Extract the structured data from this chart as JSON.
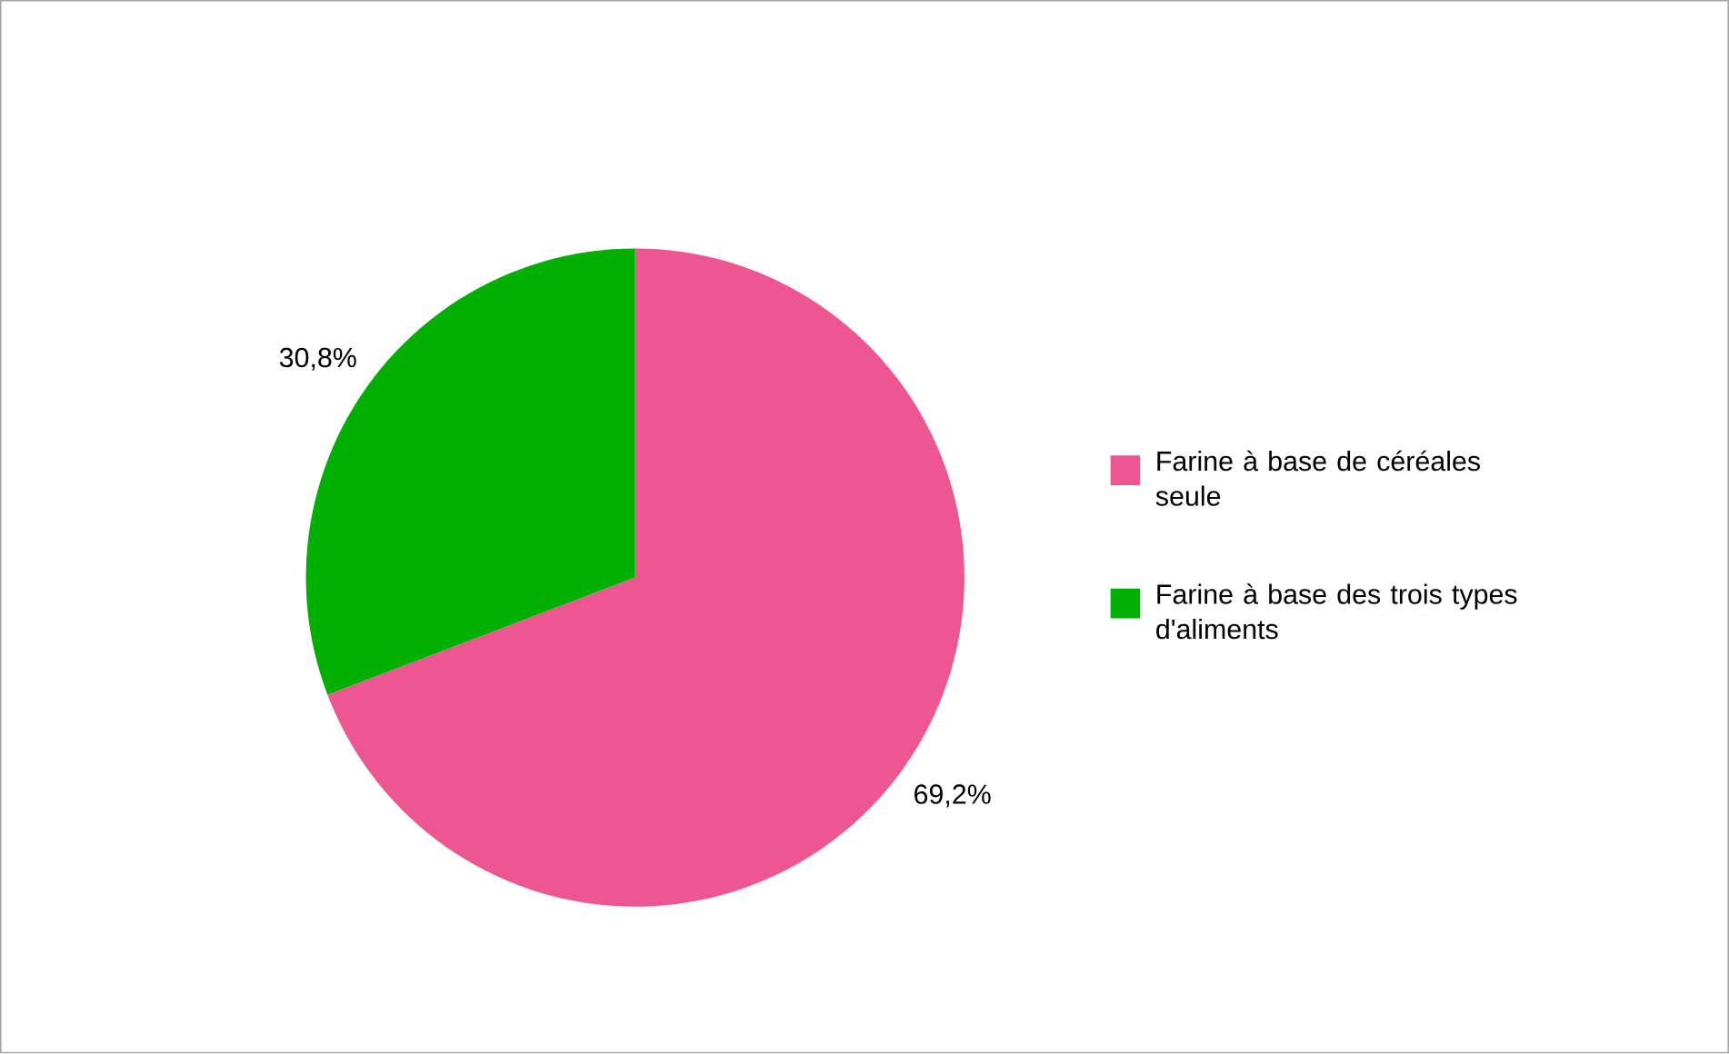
{
  "chart_data": {
    "type": "pie",
    "categories": [
      "Farine à base de céréales seule",
      "Farine à base des trois types d'aliments"
    ],
    "values": [
      69.2,
      30.8
    ],
    "value_labels": [
      "69,2%",
      "30,8%"
    ],
    "colors": [
      "#ee5691",
      "#00b000"
    ],
    "legend": "right"
  }
}
